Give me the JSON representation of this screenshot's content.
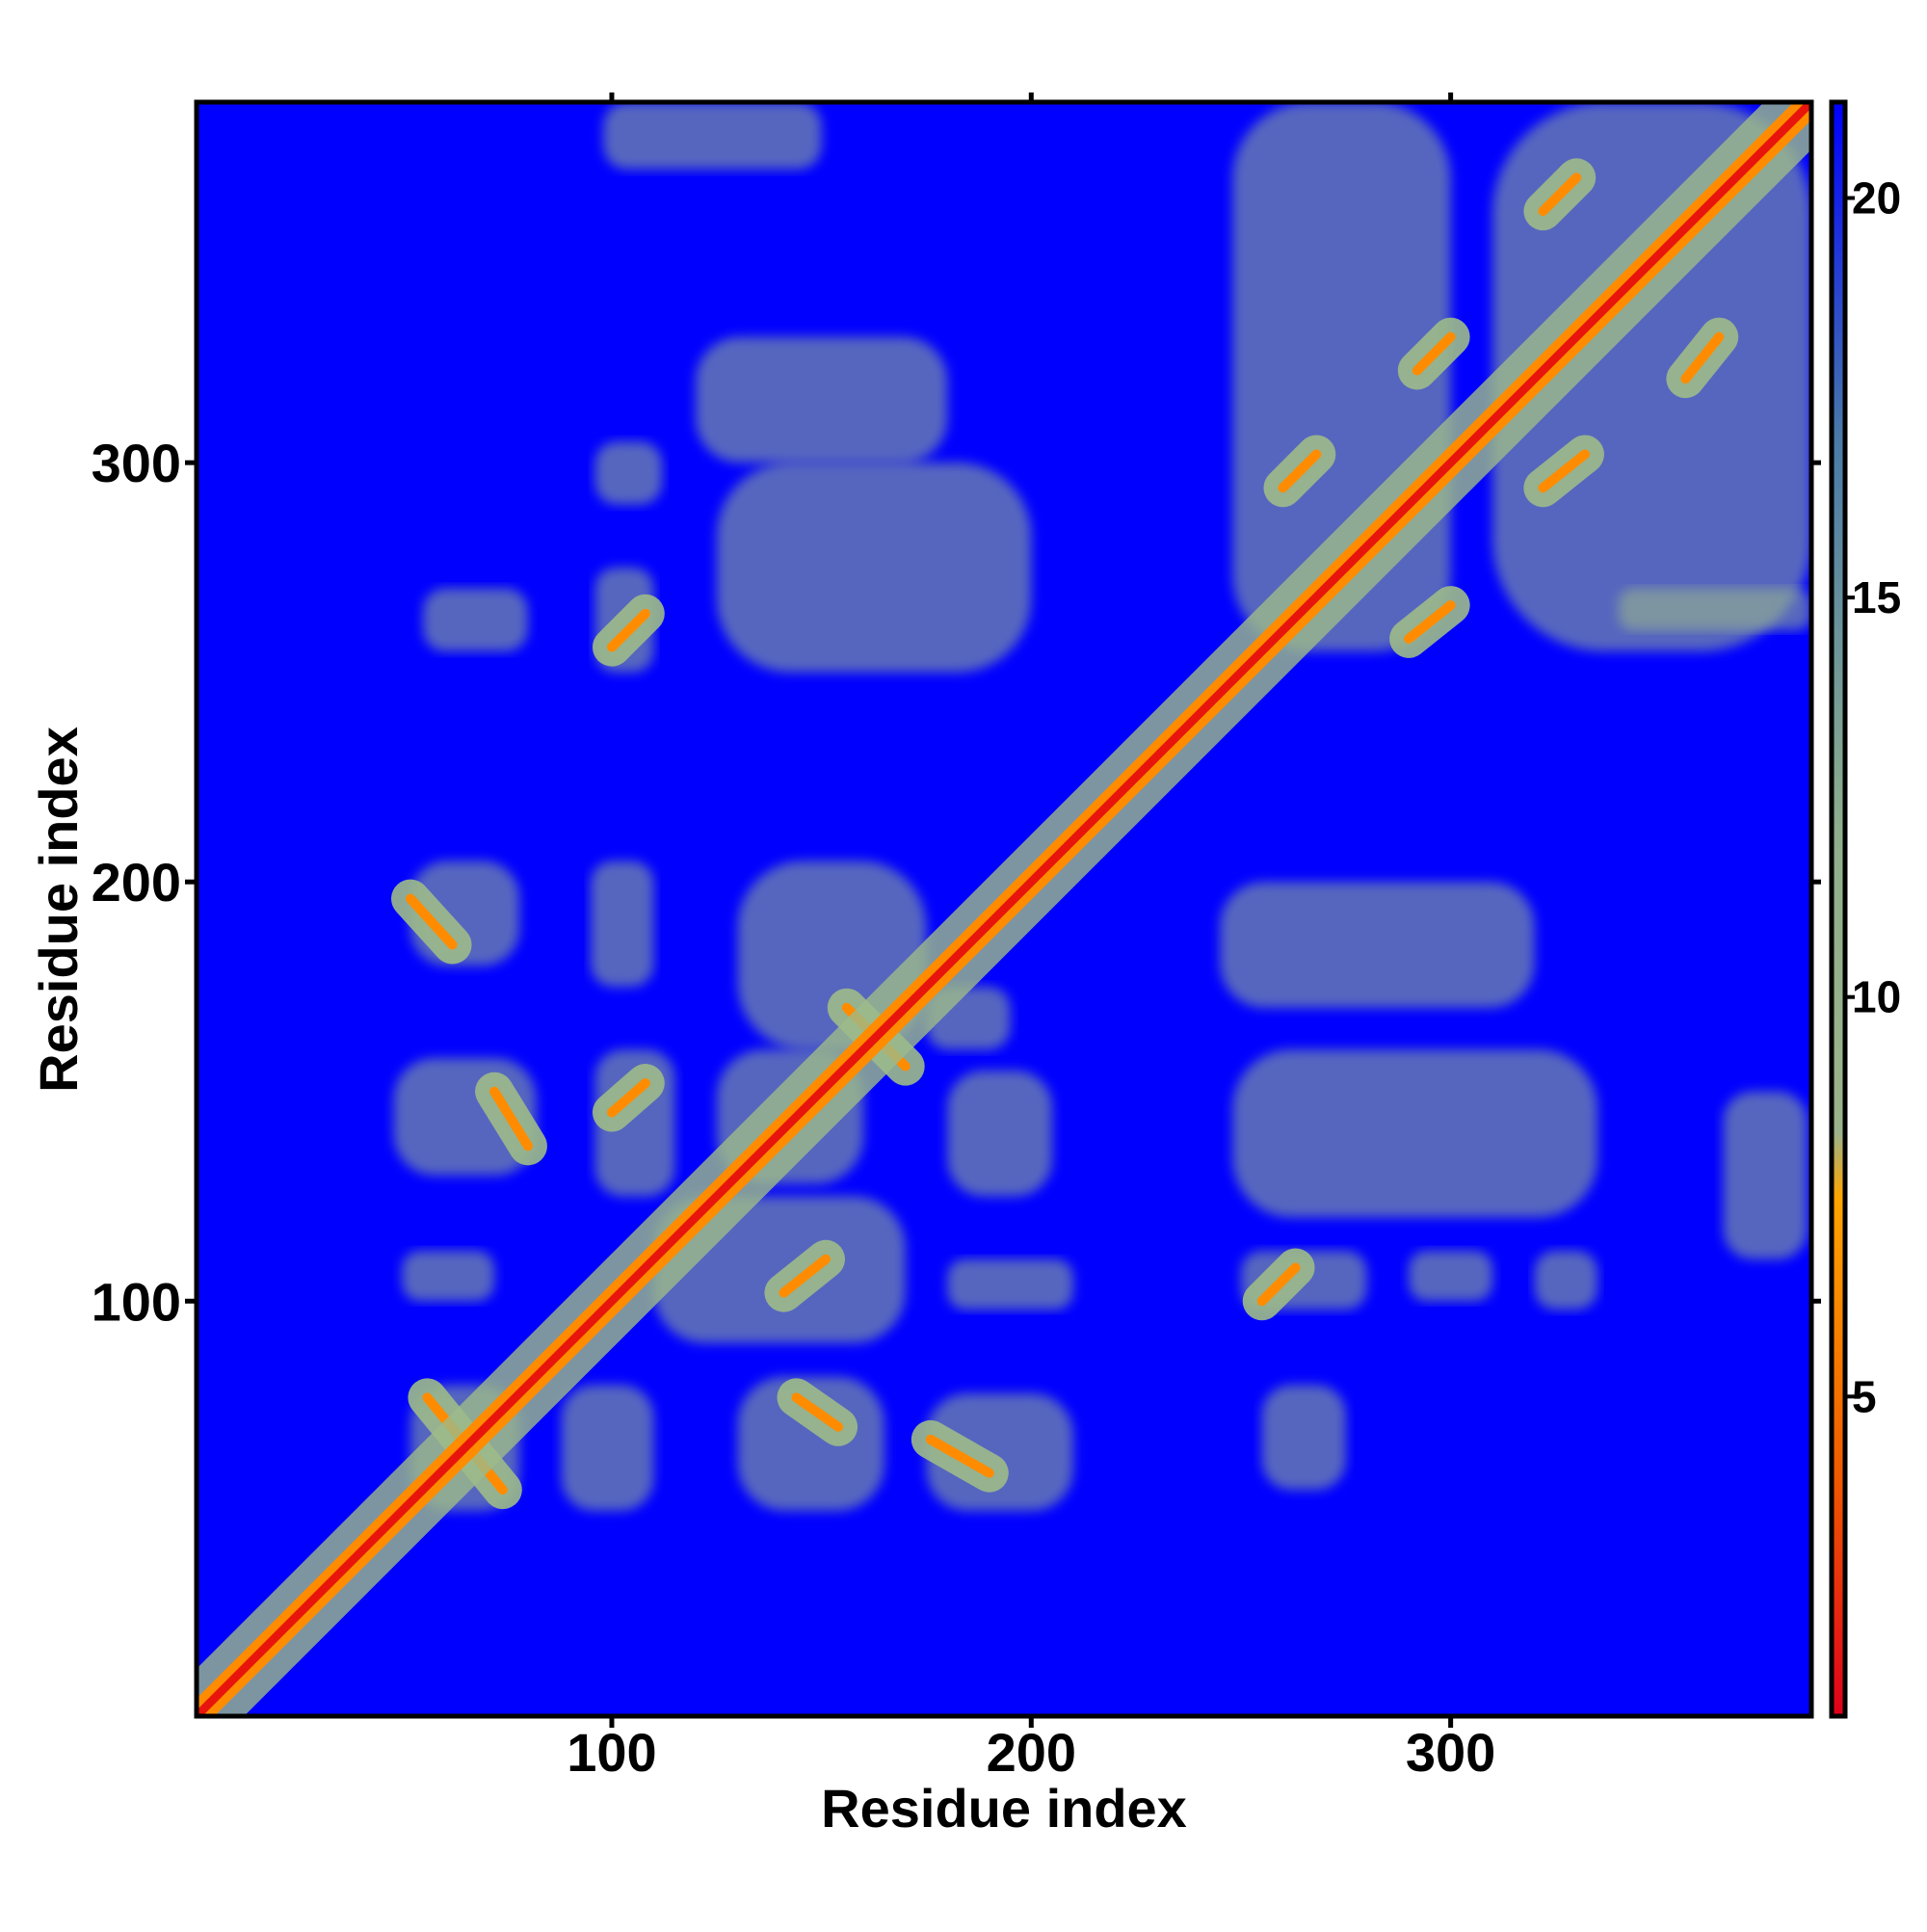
{
  "chart_data": {
    "type": "heatmap",
    "title": "",
    "xlabel": "Residue index",
    "ylabel": "Residue index",
    "xlim": [
      1,
      386
    ],
    "ylim": [
      1,
      386
    ],
    "x_ticks": [
      100,
      200,
      300
    ],
    "y_ticks": [
      100,
      200,
      300
    ],
    "colorbar": {
      "range": [
        1,
        21.2
      ],
      "ticks": [
        5,
        10,
        15,
        20
      ],
      "stops": [
        {
          "value": 1,
          "color": "#e0001a"
        },
        {
          "value": 4,
          "color": "#f05a00"
        },
        {
          "value": 7.5,
          "color": "#ffa500"
        },
        {
          "value": 8.3,
          "color": "#9bb38a"
        },
        {
          "value": 12,
          "color": "#8faf8c"
        },
        {
          "value": 17,
          "color": "#4a7aa8"
        },
        {
          "value": 21.2,
          "color": "#0000ff"
        }
      ]
    },
    "background_value": 21.2,
    "colors": {
      "background": "#0000ff",
      "diagonal": "#e8150c",
      "contact_strong": "#ff8c00",
      "contact_medium": "#9dbb8a"
    },
    "diagonal_band": {
      "from": 1,
      "to": 386,
      "core_width_residues": 2
    },
    "contact_segments": [
      {
        "start": [
          56,
          77
        ],
        "end": [
          74,
          55
        ],
        "kind": "antiparallel"
      },
      {
        "start": [
          52,
          196
        ],
        "end": [
          62,
          185
        ],
        "kind": "parallel"
      },
      {
        "start": [
          72,
          150
        ],
        "end": [
          80,
          137
        ],
        "kind": "parallel"
      },
      {
        "start": [
          100,
          145
        ],
        "end": [
          108,
          152
        ],
        "kind": "parallel"
      },
      {
        "start": [
          100,
          256
        ],
        "end": [
          108,
          264
        ],
        "kind": "parallel"
      },
      {
        "start": [
          141,
          102
        ],
        "end": [
          151,
          110
        ],
        "kind": "parallel"
      },
      {
        "start": [
          144,
          77
        ],
        "end": [
          154,
          70
        ],
        "kind": "antiparallel"
      },
      {
        "start": [
          176,
          67
        ],
        "end": [
          190,
          59
        ],
        "kind": "antiparallel"
      },
      {
        "start": [
          255,
          100
        ],
        "end": [
          263,
          108
        ],
        "kind": "parallel"
      },
      {
        "start": [
          260,
          294
        ],
        "end": [
          268,
          302
        ],
        "kind": "parallel"
      },
      {
        "start": [
          290,
          258
        ],
        "end": [
          300,
          266
        ],
        "kind": "parallel"
      },
      {
        "start": [
          292,
          322
        ],
        "end": [
          300,
          330
        ],
        "kind": "parallel"
      },
      {
        "start": [
          322,
          294
        ],
        "end": [
          332,
          302
        ],
        "kind": "parallel"
      },
      {
        "start": [
          322,
          360
        ],
        "end": [
          330,
          368
        ],
        "kind": "parallel"
      },
      {
        "start": [
          356,
          320
        ],
        "end": [
          364,
          330
        ],
        "kind": "parallel"
      },
      {
        "start": [
          156,
          170
        ],
        "end": [
          170,
          156
        ],
        "kind": "antiparallel"
      }
    ],
    "contact_regions": [
      {
        "x": [
          52,
          78
        ],
        "y": [
          50,
          80
        ]
      },
      {
        "x": [
          88,
          110
        ],
        "y": [
          50,
          80
        ]
      },
      {
        "x": [
          130,
          165
        ],
        "y": [
          50,
          82
        ]
      },
      {
        "x": [
          175,
          210
        ],
        "y": [
          50,
          78
        ]
      },
      {
        "x": [
          255,
          275
        ],
        "y": [
          55,
          80
        ]
      },
      {
        "x": [
          50,
          72
        ],
        "y": [
          100,
          112
        ]
      },
      {
        "x": [
          110,
          170
        ],
        "y": [
          90,
          125
        ]
      },
      {
        "x": [
          180,
          210
        ],
        "y": [
          98,
          110
        ]
      },
      {
        "x": [
          250,
          280
        ],
        "y": [
          98,
          112
        ]
      },
      {
        "x": [
          290,
          310
        ],
        "y": [
          100,
          112
        ]
      },
      {
        "x": [
          320,
          335
        ],
        "y": [
          98,
          112
        ]
      },
      {
        "x": [
          48,
          82
        ],
        "y": [
          130,
          158
        ]
      },
      {
        "x": [
          96,
          115
        ],
        "y": [
          125,
          160
        ]
      },
      {
        "x": [
          125,
          160
        ],
        "y": [
          128,
          160
        ]
      },
      {
        "x": [
          180,
          205
        ],
        "y": [
          125,
          155
        ]
      },
      {
        "x": [
          248,
          335
        ],
        "y": [
          120,
          160
        ]
      },
      {
        "x": [
          365,
          385
        ],
        "y": [
          110,
          150
        ]
      },
      {
        "x": [
          52,
          78
        ],
        "y": [
          180,
          205
        ]
      },
      {
        "x": [
          95,
          110
        ],
        "y": [
          175,
          205
        ]
      },
      {
        "x": [
          130,
          175
        ],
        "y": [
          160,
          205
        ]
      },
      {
        "x": [
          175,
          195
        ],
        "y": [
          160,
          175
        ]
      },
      {
        "x": [
          245,
          320
        ],
        "y": [
          170,
          200
        ]
      },
      {
        "x": [
          55,
          80
        ],
        "y": [
          255,
          270
        ]
      },
      {
        "x": [
          96,
          110
        ],
        "y": [
          250,
          275
        ]
      },
      {
        "x": [
          125,
          200
        ],
        "y": [
          250,
          300
        ]
      },
      {
        "x": [
          96,
          112
        ],
        "y": [
          290,
          305
        ]
      },
      {
        "x": [
          120,
          180
        ],
        "y": [
          300,
          330
        ]
      },
      {
        "x": [
          98,
          150
        ],
        "y": [
          370,
          386
        ]
      },
      {
        "x": [
          248,
          300
        ],
        "y": [
          255,
          386
        ]
      },
      {
        "x": [
          310,
          386
        ],
        "y": [
          255,
          386
        ]
      },
      {
        "x": [
          340,
          386
        ],
        "y": [
          260,
          270
        ]
      }
    ]
  }
}
